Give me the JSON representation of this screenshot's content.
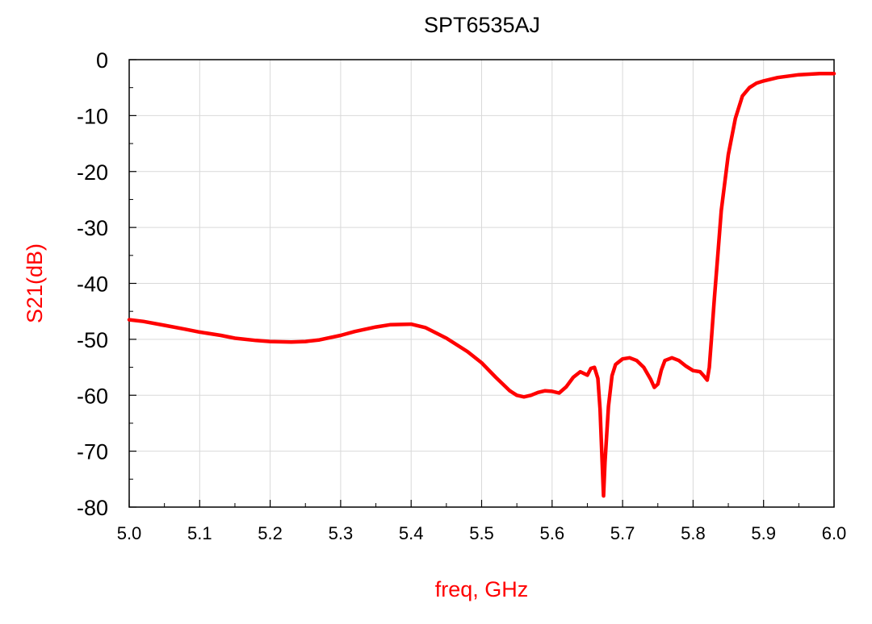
{
  "chart_data": {
    "type": "line",
    "title": "SPT6535AJ",
    "xlabel": "freq, GHz",
    "ylabel": "S21(dB)",
    "xlim": [
      5.0,
      6.0
    ],
    "ylim": [
      -80,
      0
    ],
    "x_ticks": [
      "5.0",
      "5.1",
      "5.2",
      "5.3",
      "5.4",
      "5.5",
      "5.6",
      "5.7",
      "5.8",
      "5.9",
      "6.0"
    ],
    "y_ticks": [
      "0",
      "-10",
      "-20",
      "-30",
      "-40",
      "-50",
      "-60",
      "-70",
      "-80"
    ],
    "grid": true,
    "colors": {
      "series": "#ff0000",
      "axis_label": "#ff0000",
      "grid": "#d9d9d9",
      "frame": "#000000"
    },
    "series": [
      {
        "x": [
          5.0,
          5.02,
          5.05,
          5.08,
          5.1,
          5.13,
          5.15,
          5.18,
          5.2,
          5.23,
          5.25,
          5.27,
          5.3,
          5.32,
          5.35,
          5.37,
          5.4,
          5.42,
          5.45,
          5.48,
          5.5,
          5.52,
          5.54,
          5.55,
          5.56,
          5.57,
          5.58,
          5.59,
          5.6,
          5.61,
          5.62,
          5.63,
          5.64,
          5.65,
          5.655,
          5.66,
          5.665,
          5.668,
          5.671,
          5.673,
          5.675,
          5.68,
          5.685,
          5.69,
          5.7,
          5.71,
          5.72,
          5.73,
          5.74,
          5.745,
          5.75,
          5.755,
          5.76,
          5.77,
          5.78,
          5.79,
          5.8,
          5.81,
          5.815,
          5.82,
          5.823,
          5.826,
          5.83,
          5.835,
          5.84,
          5.85,
          5.86,
          5.87,
          5.88,
          5.89,
          5.9,
          5.92,
          5.95,
          5.98,
          6.0
        ],
        "y": [
          -46.5,
          -46.8,
          -47.5,
          -48.2,
          -48.7,
          -49.3,
          -49.8,
          -50.2,
          -50.4,
          -50.5,
          -50.4,
          -50.1,
          -49.3,
          -48.6,
          -47.8,
          -47.4,
          -47.3,
          -47.9,
          -49.8,
          -52.2,
          -54.2,
          -56.8,
          -59.2,
          -60.0,
          -60.3,
          -60.0,
          -59.5,
          -59.2,
          -59.3,
          -59.6,
          -58.5,
          -56.8,
          -55.8,
          -56.4,
          -55.2,
          -55.0,
          -57.0,
          -62.5,
          -72.0,
          -78.0,
          -72.0,
          -62.0,
          -56.5,
          -54.5,
          -53.5,
          -53.3,
          -53.8,
          -55.0,
          -57.2,
          -58.6,
          -58.0,
          -55.5,
          -53.8,
          -53.3,
          -53.8,
          -54.8,
          -55.6,
          -55.8,
          -56.5,
          -57.3,
          -55.0,
          -50.0,
          -43.0,
          -35.0,
          -27.0,
          -17.0,
          -10.5,
          -6.5,
          -5.0,
          -4.2,
          -3.8,
          -3.2,
          -2.7,
          -2.5,
          -2.5
        ]
      }
    ]
  }
}
